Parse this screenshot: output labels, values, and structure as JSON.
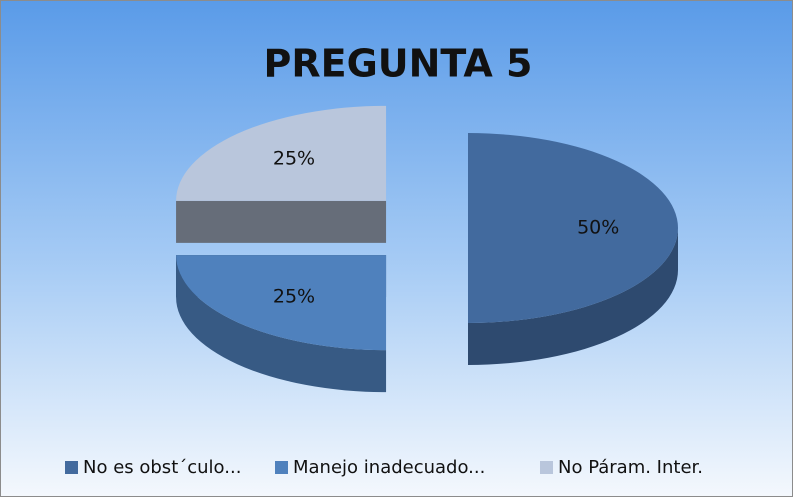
{
  "chart_data": {
    "type": "pie3d",
    "title": "PREGUNTA 5",
    "categories": [
      "No es obst´culo...",
      "Manejo inadecuado...",
      "No Páram. Inter."
    ],
    "values": [
      50,
      25,
      25
    ],
    "value_labels": [
      "50%",
      "25%",
      "25%"
    ],
    "colors": [
      "#426a9e",
      "#4f81bd",
      "#b9c6dc"
    ],
    "legend": "bottom"
  }
}
